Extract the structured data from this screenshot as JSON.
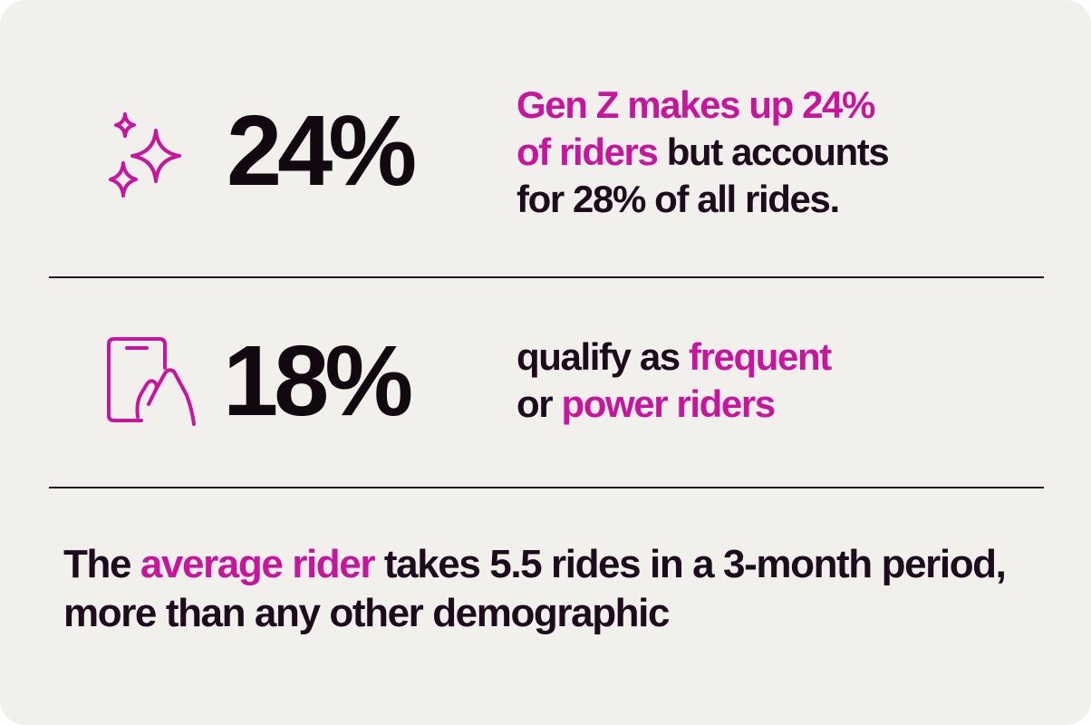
{
  "colors": {
    "background": "#f1f0ed",
    "text": "#1d0c1c",
    "accent": "#c8159d"
  },
  "stat_1": {
    "icon": "sparkles-icon",
    "value": "24%",
    "line_1_highlight": "Gen Z makes up 24%",
    "line_2_highlight": "of riders",
    "line_2_rest": " but accounts",
    "line_3": "for 28% of all rides."
  },
  "stat_2": {
    "icon": "phone-tap-icon",
    "value": "18%",
    "line_1_text": "qualify as ",
    "line_1_highlight": "frequent",
    "line_2_text": "or ",
    "line_2_highlight": "power riders"
  },
  "footer": {
    "text_1": "The ",
    "highlight": "average rider",
    "text_2": " takes 5.5 rides in a 3-month period, more than any other demographic"
  }
}
